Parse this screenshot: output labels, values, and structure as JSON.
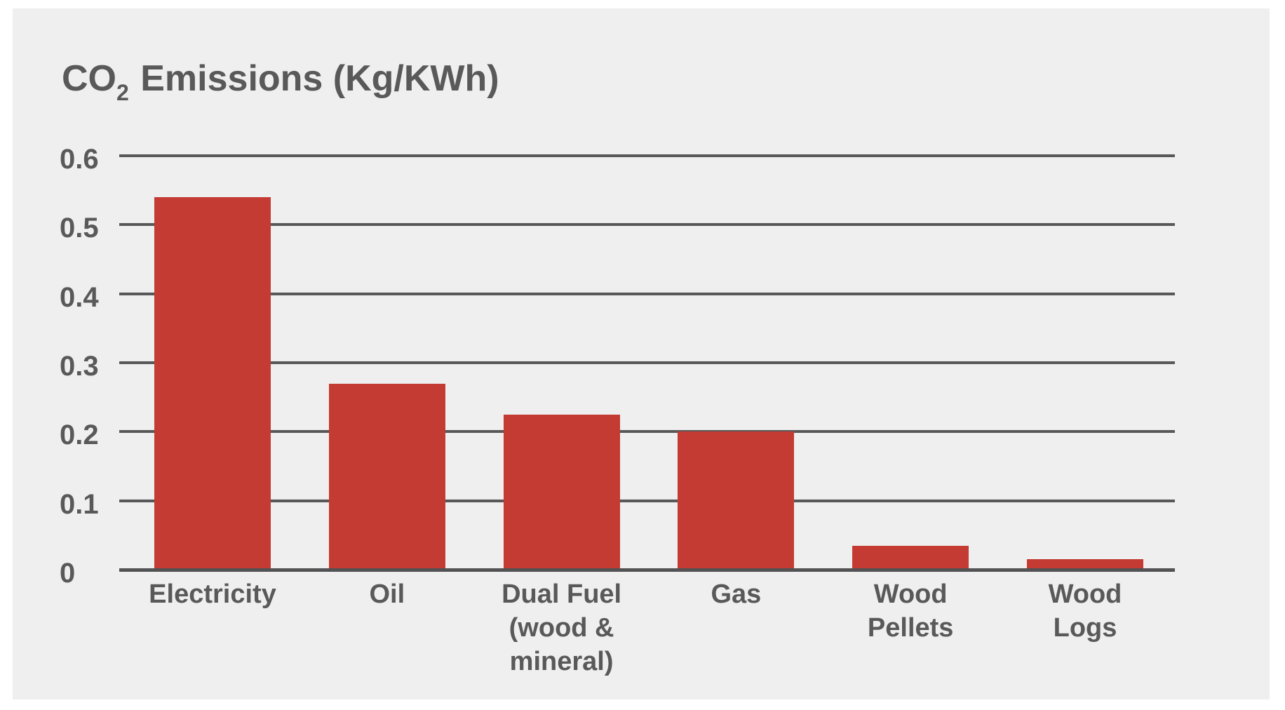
{
  "title": {
    "prefix": "CO",
    "subscript": "2",
    "suffix": " Emissions (Kg/KWh)"
  },
  "chart_data": {
    "type": "bar",
    "title": "CO2 Emissions (Kg/KWh)",
    "categories": [
      "Electricity",
      "Oil",
      "Dual Fuel (wood & mineral)",
      "Gas",
      "Wood Pellets",
      "Wood Logs"
    ],
    "category_lines": [
      [
        "Electricity"
      ],
      [
        "Oil"
      ],
      [
        "Dual Fuel",
        "(wood &",
        "mineral)"
      ],
      [
        "Gas"
      ],
      [
        "Wood",
        "Pellets"
      ],
      [
        "Wood",
        "Logs"
      ]
    ],
    "values": [
      0.54,
      0.27,
      0.225,
      0.2,
      0.035,
      0.015
    ],
    "yticks": [
      0.6,
      0.5,
      0.4,
      0.3,
      0.2,
      0.1,
      0
    ],
    "ytick_labels": [
      "0.6",
      "0.5",
      "0.4",
      "0.3",
      "0.2",
      "0.1",
      "0"
    ],
    "ylim": [
      0,
      0.6
    ],
    "xlabel": "",
    "ylabel": "",
    "grid": "horizontal",
    "legend": "none",
    "colors": {
      "bar": "#c43b33",
      "gridline": "#58585a",
      "axis": "#525254",
      "text": "#595959",
      "panel_background": "#efefef",
      "page_background": "#ffffff"
    }
  }
}
